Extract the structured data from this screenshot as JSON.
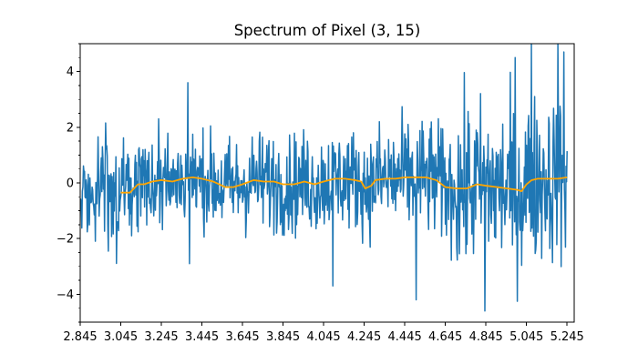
{
  "chart_data": {
    "type": "line",
    "title": "Spectrum of Pixel (3, 15)",
    "xlabel": "",
    "ylabel": "",
    "xlim": [
      2.845,
      5.28
    ],
    "ylim": [
      -5,
      5
    ],
    "x_ticks": [
      "2.845",
      "3.045",
      "3.245",
      "3.445",
      "3.645",
      "3.845",
      "4.045",
      "4.245",
      "4.445",
      "4.645",
      "4.845",
      "5.045",
      "5.245"
    ],
    "y_ticks": [
      -4,
      -2,
      0,
      2,
      4
    ],
    "y_tick_labels": [
      "−4",
      "−2",
      "0",
      "2",
      "4"
    ],
    "grid": false,
    "legend": "none",
    "series": [
      {
        "color": "#1f77b4",
        "style": "noisy raw spectrum",
        "x_range": [
          2.845,
          5.245
        ],
        "noise_amplitude_regions": [
          {
            "x": [
              2.845,
              2.93
            ],
            "amp": 1.2
          },
          {
            "x": [
              2.93,
              3.045
            ],
            "amp": 1.3
          },
          {
            "x": [
              3.045,
              3.5
            ],
            "amp": 1.1
          },
          {
            "x": [
              3.5,
              4.3
            ],
            "amp": 1.2
          },
          {
            "x": [
              4.3,
              4.7
            ],
            "amp": 1.4
          },
          {
            "x": [
              4.7,
              5.245
            ],
            "amp": 2.0
          }
        ],
        "notable_points": [
          {
            "x": 3.375,
            "y": 3.6
          },
          {
            "x": 3.385,
            "y": -2.9
          },
          {
            "x": 4.09,
            "y": -3.7
          },
          {
            "x": 4.5,
            "y": -4.2
          },
          {
            "x": 4.84,
            "y": -4.6
          },
          {
            "x": 4.99,
            "y": 4.5
          },
          {
            "x": 5.07,
            "y": 5.0
          },
          {
            "x": 5.2,
            "y": 5.0
          },
          {
            "x": 5.23,
            "y": 4.7
          }
        ]
      },
      {
        "color": "#ffa500",
        "style": "smoothed",
        "x": [
          3.045,
          3.09,
          3.13,
          3.16,
          3.2,
          3.245,
          3.3,
          3.35,
          3.4,
          3.445,
          3.5,
          3.56,
          3.6,
          3.645,
          3.7,
          3.75,
          3.8,
          3.845,
          3.9,
          3.95,
          4.0,
          4.045,
          4.1,
          4.15,
          4.2,
          4.23,
          4.25,
          4.28,
          4.3,
          4.35,
          4.4,
          4.445,
          4.5,
          4.55,
          4.6,
          4.645,
          4.7,
          4.75,
          4.8,
          4.845,
          4.9,
          4.95,
          5.0,
          5.02,
          5.045,
          5.07,
          5.1,
          5.15,
          5.2,
          5.245
        ],
        "y": [
          -0.35,
          -0.35,
          -0.05,
          -0.05,
          0.05,
          0.1,
          0.05,
          0.15,
          0.2,
          0.15,
          0.05,
          -0.15,
          -0.15,
          -0.05,
          0.1,
          0.05,
          0.05,
          -0.05,
          -0.05,
          0.05,
          -0.05,
          0.05,
          0.15,
          0.15,
          0.1,
          0.05,
          -0.2,
          -0.1,
          0.1,
          0.15,
          0.15,
          0.2,
          0.2,
          0.2,
          0.1,
          -0.15,
          -0.2,
          -0.2,
          -0.05,
          -0.1,
          -0.15,
          -0.2,
          -0.25,
          -0.3,
          -0.05,
          0.1,
          0.15,
          0.15,
          0.15,
          0.2
        ]
      }
    ]
  }
}
